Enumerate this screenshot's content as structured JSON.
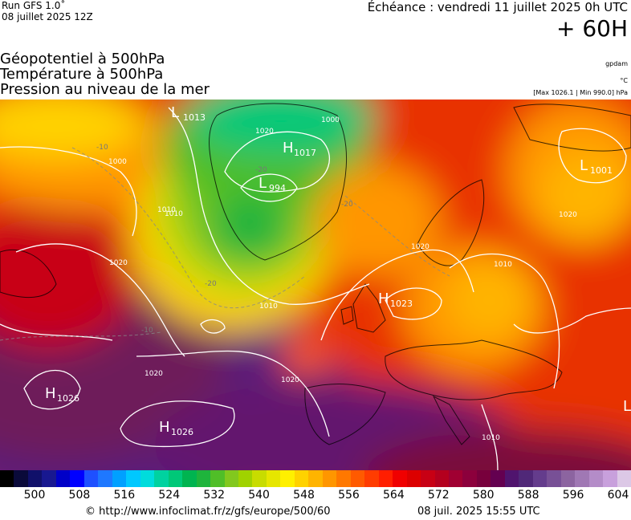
{
  "header": {
    "run_label": "Run GFS 1.0˚",
    "run_date": "08 juillet 2025 12Z",
    "echeance": "Échéance : vendredi 11 juillet 2025 0h UTC",
    "lead_time": "+ 60H"
  },
  "parameters": [
    "Géopotentiel à 500hPa",
    "Température à 500hPa",
    "Pression au niveau de la mer"
  ],
  "units": {
    "geopotential": "gpdam",
    "temperature": "°C",
    "pressure": "[Max 1026.1 | Min 990.0] hPa"
  },
  "map": {
    "pressure_centers": [
      {
        "type": "H",
        "value": "1017"
      },
      {
        "type": "L",
        "value": "994"
      },
      {
        "type": "L",
        "value": "1001"
      },
      {
        "type": "H",
        "value": "1023"
      },
      {
        "type": "H",
        "value": "1026"
      },
      {
        "type": "H",
        "value": "1026"
      },
      {
        "type": "L",
        "value": ""
      },
      {
        "type": "L",
        "value": "1013"
      }
    ],
    "isobar_labels": [
      "1000",
      "1010",
      "1020",
      "1020",
      "1010",
      "1020",
      "1020",
      "1010",
      "1020",
      "1010",
      "1010",
      "1000",
      "1020"
    ],
    "temperature_labels": [
      "-10",
      "-20",
      "-20",
      "-20",
      "-10"
    ]
  },
  "colorscale": {
    "colors": [
      "#000000",
      "#0a0a3a",
      "#10106a",
      "#181890",
      "#0000c8",
      "#0000ff",
      "#1e50ff",
      "#1e78ff",
      "#00a0ff",
      "#00c8ff",
      "#00dcdc",
      "#00d2a0",
      "#00c878",
      "#00b450",
      "#1eb43c",
      "#50be28",
      "#82c81e",
      "#a0d200",
      "#c8dc00",
      "#e6e600",
      "#fff000",
      "#ffd200",
      "#ffb400",
      "#ff9600",
      "#ff7800",
      "#ff5a00",
      "#ff3c00",
      "#ff1e00",
      "#f00000",
      "#dc0000",
      "#c80014",
      "#b4001e",
      "#a00032",
      "#8c003c",
      "#78003c",
      "#640050",
      "#50146e",
      "#502878",
      "#643c8c",
      "#785096",
      "#8c64a0",
      "#a078b4",
      "#b48cc8",
      "#c8a0dc",
      "#dcc8e6"
    ],
    "ticks": [
      "500",
      "508",
      "516",
      "524",
      "532",
      "540",
      "548",
      "556",
      "564",
      "572",
      "580",
      "588",
      "596",
      "604"
    ]
  },
  "footer": {
    "url": "© http://www.infoclimat.fr/z/gfs/europe/500/60",
    "timestamp": "08 juil. 2025 15:55 UTC"
  }
}
